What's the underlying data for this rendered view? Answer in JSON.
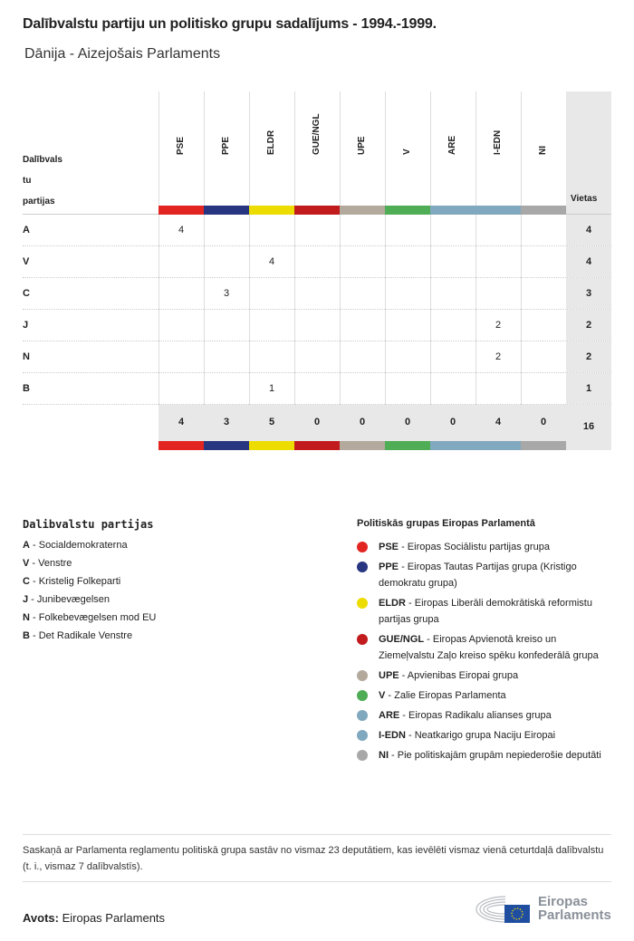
{
  "title": "Dalībvalstu partiju un politisko grupu sadalījums - 1994.-1999.",
  "subtitle": "Dānija - Aizejošais Parlaments",
  "table": {
    "row_header": [
      "Dalībvals",
      "tu",
      "partijas"
    ],
    "seats_header": "Vietas",
    "groups": [
      {
        "code": "PSE",
        "color": "#e32522"
      },
      {
        "code": "PPE",
        "color": "#283580"
      },
      {
        "code": "ELDR",
        "color": "#ecdc00"
      },
      {
        "code": "GUE/NGL",
        "color": "#c11b1e"
      },
      {
        "code": "UPE",
        "color": "#b3a99c"
      },
      {
        "code": "V",
        "color": "#4fad55"
      },
      {
        "code": "ARE",
        "color": "#80a8be"
      },
      {
        "code": "I-EDN",
        "color": "#80a8be"
      },
      {
        "code": "NI",
        "color": "#a8a8a8"
      }
    ],
    "rows": [
      {
        "party": "A",
        "values": [
          "4",
          "",
          "",
          "",
          "",
          "",
          "",
          "",
          ""
        ],
        "seats": "4"
      },
      {
        "party": "V",
        "values": [
          "",
          "",
          "4",
          "",
          "",
          "",
          "",
          "",
          ""
        ],
        "seats": "4"
      },
      {
        "party": "C",
        "values": [
          "",
          "3",
          "",
          "",
          "",
          "",
          "",
          "",
          ""
        ],
        "seats": "3"
      },
      {
        "party": "J",
        "values": [
          "",
          "",
          "",
          "",
          "",
          "",
          "",
          "2",
          ""
        ],
        "seats": "2"
      },
      {
        "party": "N",
        "values": [
          "",
          "",
          "",
          "",
          "",
          "",
          "",
          "2",
          ""
        ],
        "seats": "2"
      },
      {
        "party": "B",
        "values": [
          "",
          "",
          "1",
          "",
          "",
          "",
          "",
          "",
          ""
        ],
        "seats": "1"
      }
    ],
    "totals": [
      "4",
      "3",
      "5",
      "0",
      "0",
      "0",
      "0",
      "4",
      "0"
    ],
    "total_seats": "16"
  },
  "parties_legend": {
    "title": "Dalibvalstu partijas",
    "items": [
      {
        "code": "A",
        "name": "Socialdemokraterna"
      },
      {
        "code": "V",
        "name": "Venstre"
      },
      {
        "code": "C",
        "name": "Kristelig Folkeparti"
      },
      {
        "code": "J",
        "name": "Junibevægelsen"
      },
      {
        "code": "N",
        "name": "Folkebevægelsen mod EU"
      },
      {
        "code": "B",
        "name": "Det Radikale Venstre"
      }
    ]
  },
  "groups_legend": {
    "title": "Politiskās grupas Eiropas Parlamentā",
    "items": [
      {
        "code": "PSE",
        "name": "Eiropas Sociālistu partijas grupa",
        "color": "#e32522"
      },
      {
        "code": "PPE",
        "name": "Eiropas Tautas Partijas grupa (Kristigo demokratu grupa)",
        "color": "#283580"
      },
      {
        "code": "ELDR",
        "name": "Eiropas Liberāli demokrātiskā reformistu partijas grupa",
        "color": "#ecdc00"
      },
      {
        "code": "GUE/NGL",
        "name": "Eiropas Apvienotā kreiso un Ziemeļvalstu Zaļo kreiso spēku konfederālā grupa",
        "color": "#c11b1e"
      },
      {
        "code": "UPE",
        "name": "Apvienibas Eiropai grupa",
        "color": "#b3a99c"
      },
      {
        "code": "V",
        "name": "Zalie Eiropas Parlamenta",
        "color": "#4fad55"
      },
      {
        "code": "ARE",
        "name": "Eiropas Radikalu alianses grupa",
        "color": "#80a8be"
      },
      {
        "code": "I-EDN",
        "name": "Neatkarigo grupa Naciju Eiropai",
        "color": "#80a8be"
      },
      {
        "code": "NI",
        "name": "Pie politiskajām grupām nepiederošie deputāti",
        "color": "#a8a8a8"
      }
    ]
  },
  "note": "Saskaņā ar Parlamenta reglamentu politiskā grupa sastāv no vismaz 23 deputātiem, kas ievēlēti vismaz vienā ceturtdaļā dalībvalstu (t. i., vismaz 7 dalībvalstīs).",
  "source": {
    "label": "Avots:",
    "value": "Eiropas Parlaments"
  },
  "logo": {
    "line1": "Eiropas",
    "line2": "Parlaments"
  }
}
